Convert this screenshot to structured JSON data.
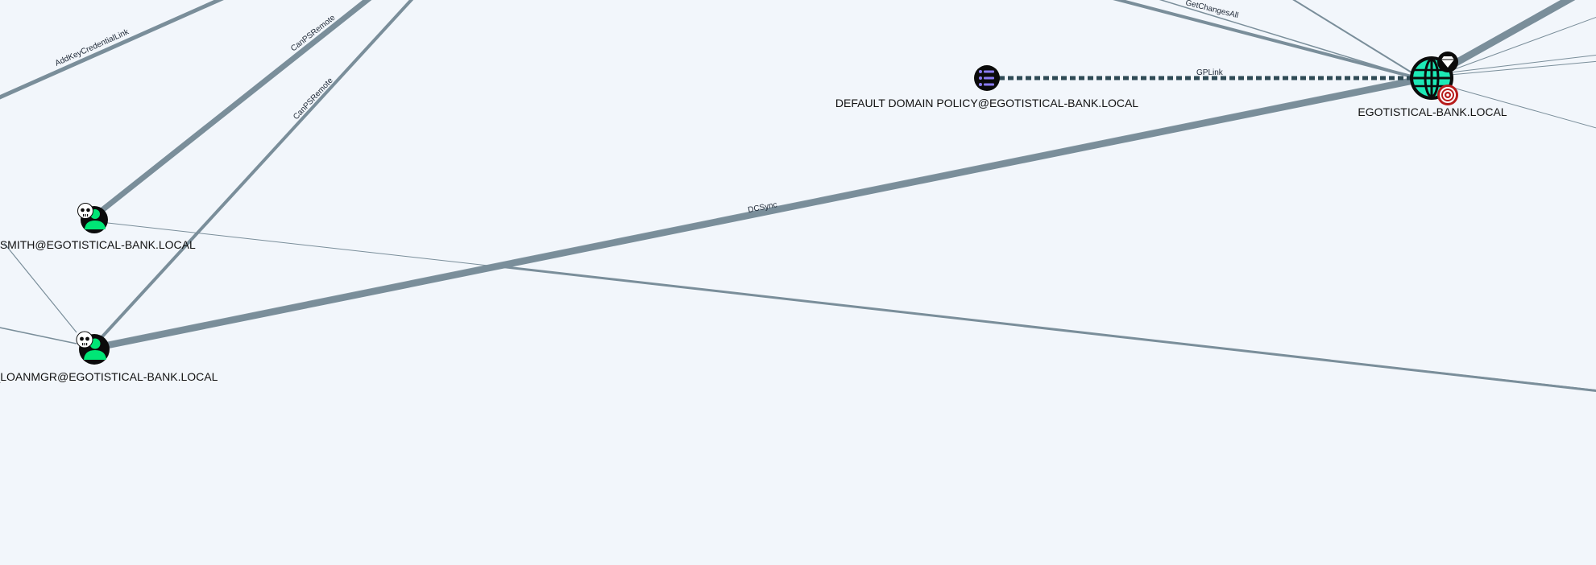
{
  "graph": {
    "nodes": [
      {
        "id": "fsmith",
        "label": "FSMITH@EGOTISTICAL-BANK.LOCAL",
        "type": "user",
        "badge": "skull-icon",
        "icon": "user-icon"
      },
      {
        "id": "svc_loanmgr",
        "label": "SVC_LOANMGR@EGOTISTICAL-BANK.LOCAL",
        "type": "user",
        "badge": "skull-icon",
        "icon": "user-icon"
      },
      {
        "id": "default_domain_policy",
        "label": "DEFAULT DOMAIN POLICY@EGOTISTICAL-BANK.LOCAL",
        "type": "gpo",
        "icon": "list-icon"
      },
      {
        "id": "domain",
        "label": "EGOTISTICAL-BANK.LOCAL",
        "type": "domain",
        "icon": "globe-icon",
        "badges": [
          "diamond-icon",
          "target-icon"
        ]
      }
    ],
    "edge_labels": {
      "addkey": "AddKeyCredentialLink",
      "canps1": "CanPSRemote",
      "canps2": "CanPSRemote",
      "dcsync": "DCSync",
      "gplink": "GPLink",
      "getchangesall": "GetChangesAll"
    }
  },
  "colors": {
    "background": "#f2f6fb",
    "edge": "#7a8e9a",
    "gplink_edge": "#2f4a55",
    "user_icon": "#00e676",
    "domain_icon": "#1de9b6",
    "gpo_icon": "#8b7cf6",
    "target_badge": "#b71c1c"
  }
}
